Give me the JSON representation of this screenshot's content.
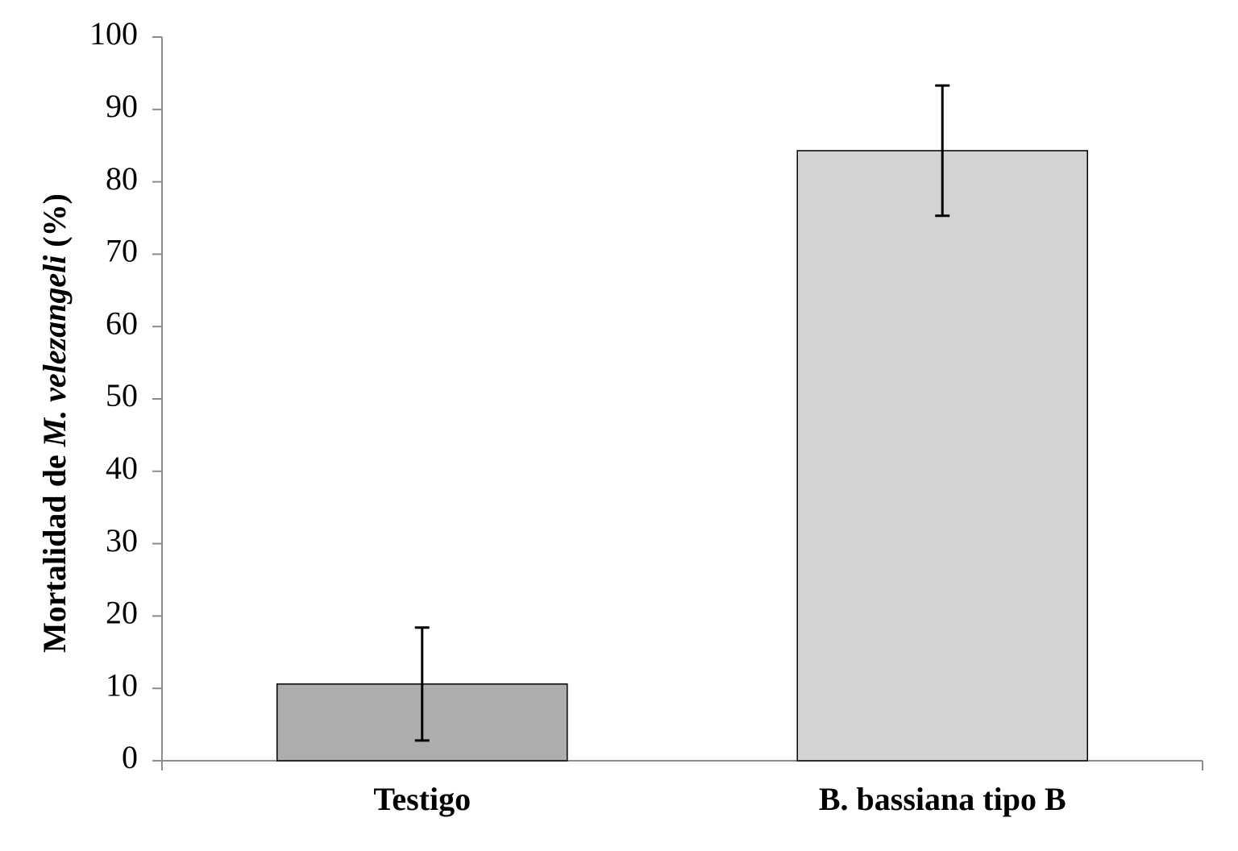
{
  "chart_data": {
    "type": "bar",
    "ylabel": [
      {
        "text": "Mortalidad de ",
        "italic": false
      },
      {
        "text": "M. velezangeli",
        "italic": true
      },
      {
        "text": " (%)",
        "italic": false
      }
    ],
    "categories": [
      "Testigo",
      "B. bassiana tipo B"
    ],
    "values": [
      10.6,
      84.3
    ],
    "errors": [
      7.8,
      9.0
    ],
    "colors": [
      "#adadad",
      "#d3d3d3"
    ],
    "ylim": [
      0,
      100
    ],
    "yticks": [
      0,
      10,
      20,
      30,
      40,
      50,
      60,
      70,
      80,
      90,
      100
    ],
    "grid": false
  }
}
